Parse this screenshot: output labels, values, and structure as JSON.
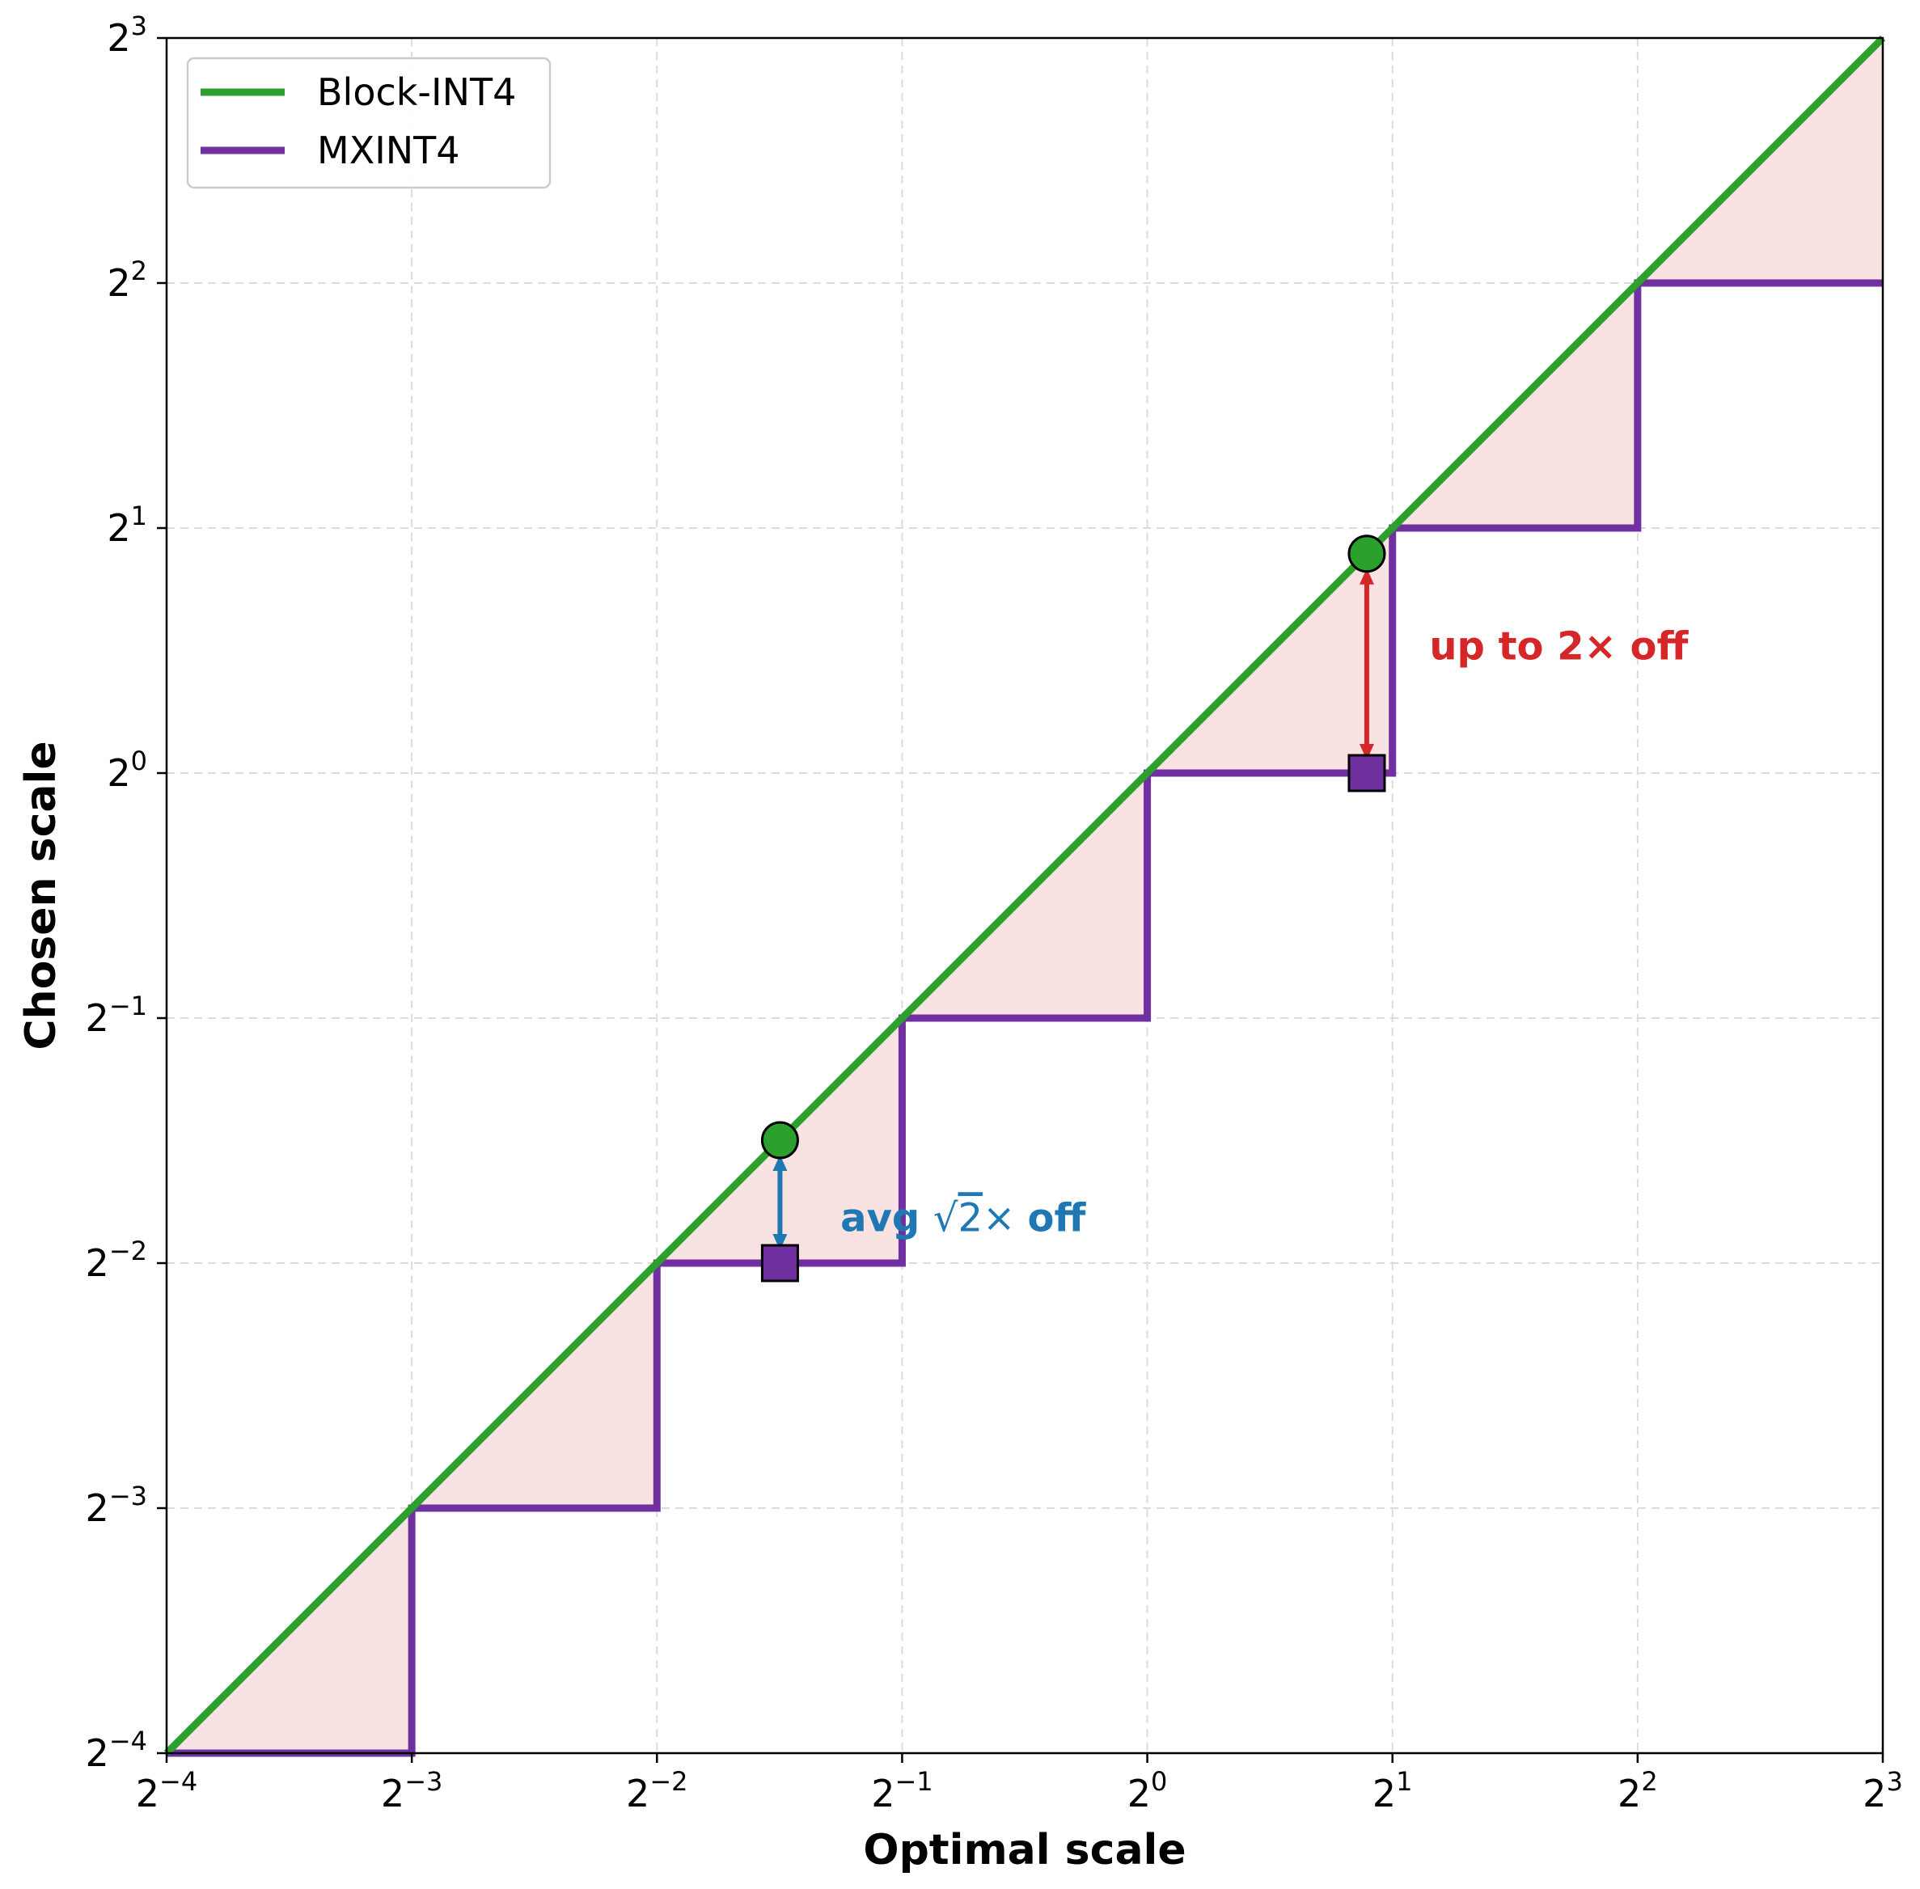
{
  "chart_data": {
    "type": "line",
    "xlabel": "Optimal scale",
    "ylabel": "Chosen scale",
    "xscale": "log2",
    "yscale": "log2",
    "xlim": [
      0.0625,
      8
    ],
    "ylim": [
      0.0625,
      8
    ],
    "ticks": [
      {
        "value": 0.0625,
        "base": "2",
        "exp": "−4"
      },
      {
        "value": 0.125,
        "base": "2",
        "exp": "−3"
      },
      {
        "value": 0.25,
        "base": "2",
        "exp": "−2"
      },
      {
        "value": 0.5,
        "base": "2",
        "exp": "−1"
      },
      {
        "value": 1,
        "base": "2",
        "exp": "0"
      },
      {
        "value": 2,
        "base": "2",
        "exp": "1"
      },
      {
        "value": 4,
        "base": "2",
        "exp": "2"
      },
      {
        "value": 8,
        "base": "2",
        "exp": "3"
      }
    ],
    "grid": true,
    "legend_position": "top-left",
    "series": [
      {
        "name": "Block-INT4",
        "color": "#2ca02c",
        "style": "line",
        "x": [
          0.0625,
          8
        ],
        "y": [
          0.0625,
          8
        ]
      },
      {
        "name": "MXINT4",
        "color": "#7030a0",
        "style": "step",
        "x": [
          0.0625,
          0.125,
          0.125,
          0.25,
          0.25,
          0.5,
          0.5,
          1,
          1,
          2,
          2,
          4,
          4,
          8
        ],
        "y": [
          0.0625,
          0.0625,
          0.125,
          0.125,
          0.25,
          0.25,
          0.5,
          0.5,
          1,
          1,
          2,
          2,
          4,
          4
        ]
      }
    ],
    "shaded_region": {
      "color": "#f8e2e2",
      "between": [
        "Block-INT4",
        "MXINT4"
      ]
    },
    "markers": [
      {
        "series": "Block-INT4",
        "shape": "circle",
        "x": 0.354,
        "y": 0.354
      },
      {
        "series": "MXINT4",
        "shape": "square",
        "x": 0.354,
        "y": 0.25
      },
      {
        "series": "Block-INT4",
        "shape": "circle",
        "x": 1.86,
        "y": 1.86
      },
      {
        "series": "MXINT4",
        "shape": "square",
        "x": 1.86,
        "y": 1
      }
    ],
    "annotations": [
      {
        "parts": [
          "avg ",
          "√",
          "2",
          "×",
          "off"
        ],
        "color": "#1f77b4",
        "arrow_x": 0.354,
        "arrow_y": [
          0.25,
          0.354
        ],
        "text_x": 0.42,
        "text_y": 0.284
      },
      {
        "text": "up to 2× off",
        "color": "#d62728",
        "arrow_x": 1.86,
        "arrow_y": [
          1,
          1.86
        ],
        "text_x": 2.22,
        "text_y": 1.43
      }
    ]
  }
}
